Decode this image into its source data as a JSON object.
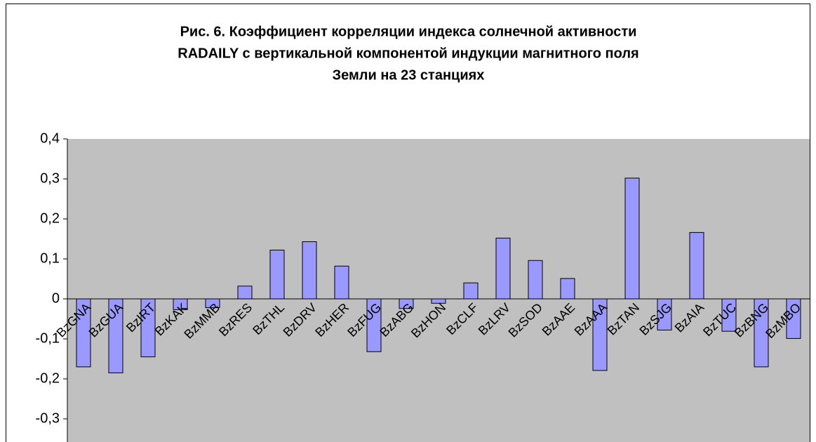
{
  "chart_data": {
    "type": "bar",
    "title": [
      "Рис. 6. Коэффициент корреляции индекса солнечной активности",
      "RADAILY с вертикальной компонентой индукции магнитного поля",
      "Земли на 23 станциях"
    ],
    "categories": [
      "BzGNA",
      "BzGUA",
      "BzIRT",
      "BzKAK",
      "BzMMB",
      "BzRES",
      "BzTHL",
      "BzDRV",
      "BzHER",
      "BzFUG",
      "BzABG",
      "BzHON",
      "BzCLF",
      "BzLRV",
      "BzSOD",
      "BzAAE",
      "BzAAA",
      "BzTAN",
      "BzSJG",
      "BzAIA",
      "BzTUC",
      "BzBNG",
      "BzMBO"
    ],
    "values": [
      -0.17,
      -0.185,
      -0.145,
      -0.027,
      -0.022,
      0.032,
      0.122,
      0.143,
      0.082,
      -0.132,
      -0.024,
      -0.011,
      0.04,
      0.152,
      0.096,
      0.051,
      -0.179,
      0.302,
      -0.078,
      0.166,
      -0.081,
      -0.17,
      -0.099
    ],
    "color": "#9999ff",
    "ylim": [
      -0.35,
      0.4
    ],
    "yticks": [
      {
        "value": -0.3,
        "label": "-0,3"
      },
      {
        "value": -0.2,
        "label": "-0,2"
      },
      {
        "value": -0.1,
        "label": "-0,1"
      },
      0,
      {
        "value": 0.1,
        "label": "0,1"
      },
      {
        "value": 0.2,
        "label": "0,2"
      },
      {
        "value": 0.3,
        "label": "0,3"
      },
      {
        "value": 0.4,
        "label": "0,4"
      }
    ],
    "grid": false
  }
}
